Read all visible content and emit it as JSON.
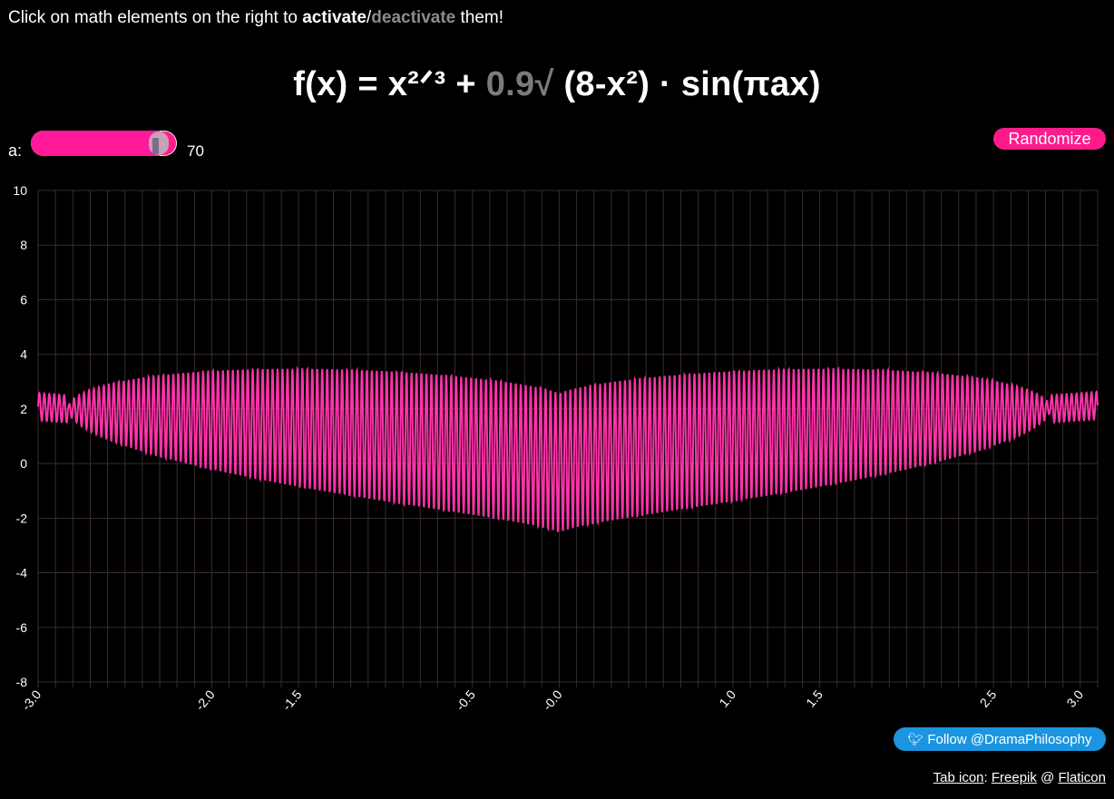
{
  "instruction": {
    "prefix": "Click on math elements on the right to ",
    "activate": "activate",
    "slash": "/",
    "deactivate": "deactivate",
    "suffix": " them!"
  },
  "formula": {
    "lhs": "f(x) = ",
    "term1": "x²ᐟ³",
    "plus": " + ",
    "coef": "0.9",
    "sqrt": "√",
    "term2": " (8-x²)",
    "dot": " · ",
    "term3": "sin(πax)"
  },
  "slider": {
    "label": "a:",
    "value": "70",
    "min": 0,
    "max": 75,
    "current": 70
  },
  "randomize_label": "Randomize",
  "follow_label": "Follow @DramaPhilosophy",
  "credits": {
    "prefix": "Tab icon",
    "colon": ": ",
    "freepik": "Freepik",
    "at": " @ ",
    "flaticon": "Flaticon"
  },
  "colors": {
    "accent": "#ff1a8c",
    "curve": "#ff33aa",
    "twitter": "#1b95e0"
  },
  "chart_data": {
    "type": "line",
    "function": "x^(2/3) + 0.9*sqrt(8 - x^2)*sin(pi*a*x)",
    "a": 70,
    "xlim": [
      -3.0,
      3.1
    ],
    "ylim": [
      -8,
      10
    ],
    "y_ticks": [
      "10",
      "8",
      "6",
      "4",
      "2",
      "0",
      "-2",
      "-4",
      "-6",
      "-8"
    ],
    "x_ticks": [
      {
        "x": -3.0,
        "label": "-3.0"
      },
      {
        "x": -2.0,
        "label": "-2.0"
      },
      {
        "x": -1.5,
        "label": "-1.5"
      },
      {
        "x": -0.5,
        "label": "-0.5"
      },
      {
        "x": 0.0,
        "label": "-0.0"
      },
      {
        "x": 1.0,
        "label": "1.0"
      },
      {
        "x": 1.5,
        "label": "1.5"
      },
      {
        "x": 2.5,
        "label": "2.5"
      },
      {
        "x": 3.0,
        "label": "3.0"
      }
    ],
    "grid": true
  }
}
